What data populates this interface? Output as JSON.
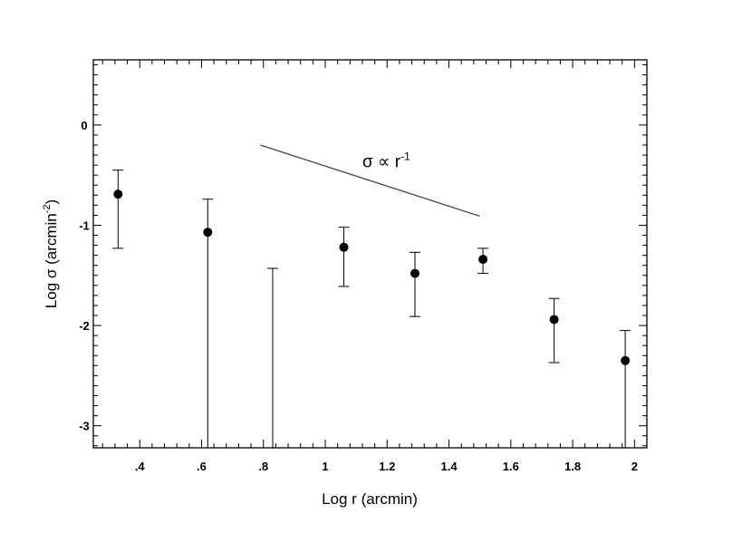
{
  "chart_data": {
    "type": "scatter",
    "xlabel": "Log r (arcmin)",
    "ylabel": {
      "main": "Log σ (arcmin",
      "sup": "-2",
      "close": ")"
    },
    "xlim": [
      0.25,
      2.04
    ],
    "ylim": [
      -3.22,
      0.65
    ],
    "x_ticks": [
      {
        "value": 0.4,
        "label": ".4"
      },
      {
        "value": 0.6,
        "label": ".6"
      },
      {
        "value": 0.8,
        "label": ".8"
      },
      {
        "value": 1.0,
        "label": "1"
      },
      {
        "value": 1.2,
        "label": "1.2"
      },
      {
        "value": 1.4,
        "label": "1.4"
      },
      {
        "value": 1.6,
        "label": "1.6"
      },
      {
        "value": 1.8,
        "label": "1.8"
      },
      {
        "value": 2.0,
        "label": "2"
      }
    ],
    "y_ticks": [
      {
        "value": 0,
        "label": "0"
      },
      {
        "value": -1,
        "label": "-1"
      },
      {
        "value": -2,
        "label": "-2"
      },
      {
        "value": -3,
        "label": "-3"
      }
    ],
    "points": [
      {
        "x": 0.33,
        "y": -0.69,
        "err_low": -1.23,
        "err_high": -0.45
      },
      {
        "x": 0.62,
        "y": -1.07,
        "err_low": -3.22,
        "err_high": -0.74
      },
      {
        "x": 0.83,
        "y": null,
        "err_low": -3.22,
        "err_high": -1.43
      },
      {
        "x": 1.06,
        "y": -1.22,
        "err_low": -1.61,
        "err_high": -1.02
      },
      {
        "x": 1.29,
        "y": -1.48,
        "err_low": -1.91,
        "err_high": -1.27
      },
      {
        "x": 1.51,
        "y": -1.34,
        "err_low": -1.48,
        "err_high": -1.23
      },
      {
        "x": 1.74,
        "y": -1.94,
        "err_low": -2.37,
        "err_high": -1.73
      },
      {
        "x": 1.97,
        "y": -2.35,
        "err_low": -3.22,
        "err_high": -2.05
      }
    ],
    "reference_line": {
      "x": [
        0.79,
        1.5
      ],
      "y": [
        -0.2,
        -0.91
      ]
    },
    "annotation": {
      "text": "σ ∝ r",
      "sup": "-1",
      "x": 1.12,
      "y": -0.42
    },
    "grid": false,
    "legend": "none"
  }
}
